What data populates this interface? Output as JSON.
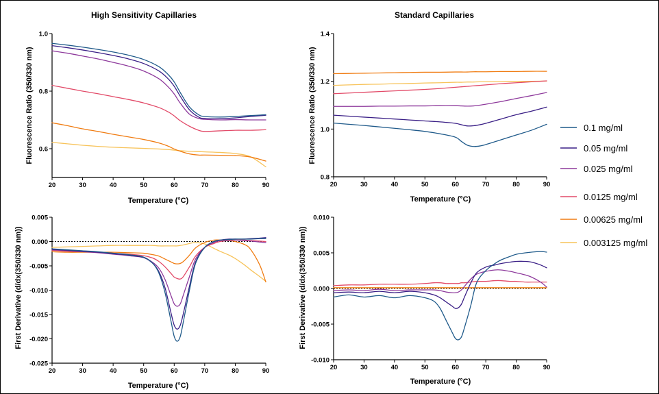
{
  "series": [
    {
      "name": "0.1 mg/ml",
      "color": "#1f5a8a"
    },
    {
      "name": "0.05 mg/ml",
      "color": "#3a1f86"
    },
    {
      "name": "0.025 mg/ml",
      "color": "#8e3a9c"
    },
    {
      "name": "0.0125 mg/ml",
      "color": "#e24a68"
    },
    {
      "name": "0.00625 mg/ml",
      "color": "#f07c12"
    },
    {
      "name": "0.003125 mg/ml",
      "color": "#f7c35a"
    }
  ],
  "legend": {
    "placement": "right"
  },
  "chart_data": [
    {
      "id": "p1",
      "type": "line",
      "title": "High Sensitivity Capillaries",
      "xlabel": "Temperature (°C)",
      "ylabel": "Fluorescence Ratio (350/330 nm)",
      "xlim": [
        20,
        90
      ],
      "ylim": [
        0.5,
        1.0
      ],
      "xticks": [
        20,
        30,
        40,
        50,
        60,
        70,
        80,
        90
      ],
      "xtick_labels": [
        "20",
        "30",
        "40",
        "50",
        "60",
        "70",
        "80",
        "90"
      ],
      "yticks": [
        0.6,
        0.8,
        1.0
      ],
      "ytick_labels": [
        "0.6",
        "0.8",
        "1.0"
      ],
      "grid": false,
      "x": [
        20,
        25,
        30,
        35,
        40,
        45,
        50,
        55,
        58,
        60,
        62,
        65,
        68,
        70,
        75,
        80,
        85,
        90
      ],
      "series": [
        {
          "name": "0.1 mg/ml",
          "values": [
            0.966,
            0.96,
            0.953,
            0.945,
            0.936,
            0.925,
            0.91,
            0.885,
            0.858,
            0.832,
            0.795,
            0.745,
            0.718,
            0.712,
            0.71,
            0.712,
            0.715,
            0.718
          ]
        },
        {
          "name": "0.05 mg/ml",
          "values": [
            0.958,
            0.951,
            0.943,
            0.934,
            0.924,
            0.912,
            0.896,
            0.87,
            0.843,
            0.817,
            0.782,
            0.735,
            0.71,
            0.705,
            0.704,
            0.707,
            0.712,
            0.716
          ]
        },
        {
          "name": "0.025 mg/ml",
          "values": [
            0.94,
            0.932,
            0.922,
            0.912,
            0.9,
            0.887,
            0.87,
            0.843,
            0.815,
            0.79,
            0.758,
            0.72,
            0.705,
            0.702,
            0.7,
            0.701,
            0.7,
            0.7
          ]
        },
        {
          "name": "0.0125 mg/ml",
          "values": [
            0.82,
            0.81,
            0.8,
            0.791,
            0.781,
            0.771,
            0.759,
            0.743,
            0.728,
            0.714,
            0.697,
            0.678,
            0.664,
            0.66,
            0.662,
            0.664,
            0.664,
            0.666
          ]
        },
        {
          "name": "0.00625 mg/ml",
          "values": [
            0.69,
            0.68,
            0.669,
            0.66,
            0.65,
            0.641,
            0.632,
            0.62,
            0.609,
            0.599,
            0.591,
            0.582,
            0.578,
            0.578,
            0.577,
            0.576,
            0.571,
            0.557
          ]
        },
        {
          "name": "0.003125 mg/ml",
          "values": [
            0.622,
            0.617,
            0.612,
            0.608,
            0.605,
            0.603,
            0.601,
            0.599,
            0.597,
            0.595,
            0.593,
            0.591,
            0.59,
            0.589,
            0.587,
            0.583,
            0.572,
            0.537
          ]
        }
      ]
    },
    {
      "id": "p2",
      "type": "line",
      "title": "Standard Capillaries",
      "xlabel": "Temperature (°C)",
      "ylabel": "Fluorescence Ratio (350/330 nm)",
      "xlim": [
        20,
        90
      ],
      "ylim": [
        0.8,
        1.4
      ],
      "xticks": [
        20,
        30,
        40,
        50,
        60,
        70,
        80,
        90
      ],
      "xtick_labels": [
        "20",
        "30",
        "40",
        "50",
        "60",
        "70",
        "80",
        "90"
      ],
      "yticks": [
        0.8,
        1.0,
        1.2,
        1.4
      ],
      "ytick_labels": [
        "0.8",
        "1.0",
        "1.2",
        "1.4"
      ],
      "grid": false,
      "x": [
        20,
        25,
        30,
        35,
        40,
        45,
        50,
        55,
        60,
        62,
        64,
        66,
        68,
        70,
        75,
        80,
        85,
        90
      ],
      "series": [
        {
          "name": "0.1 mg/ml",
          "values": [
            1.025,
            1.02,
            1.015,
            1.009,
            1.003,
            0.997,
            0.99,
            0.98,
            0.966,
            0.948,
            0.932,
            0.927,
            0.929,
            0.935,
            0.955,
            0.975,
            0.995,
            1.02
          ]
        },
        {
          "name": "0.05 mg/ml",
          "values": [
            1.058,
            1.054,
            1.05,
            1.046,
            1.042,
            1.038,
            1.034,
            1.03,
            1.024,
            1.018,
            1.013,
            1.014,
            1.018,
            1.024,
            1.042,
            1.06,
            1.075,
            1.092
          ]
        },
        {
          "name": "0.025 mg/ml",
          "values": [
            1.095,
            1.095,
            1.095,
            1.096,
            1.096,
            1.097,
            1.097,
            1.098,
            1.098,
            1.097,
            1.096,
            1.097,
            1.1,
            1.104,
            1.115,
            1.128,
            1.14,
            1.153
          ]
        },
        {
          "name": "0.0125 mg/ml",
          "values": [
            1.148,
            1.151,
            1.154,
            1.157,
            1.16,
            1.163,
            1.166,
            1.17,
            1.175,
            1.177,
            1.179,
            1.181,
            1.183,
            1.185,
            1.19,
            1.194,
            1.198,
            1.202
          ]
        },
        {
          "name": "0.00625 mg/ml",
          "values": [
            1.232,
            1.233,
            1.234,
            1.235,
            1.236,
            1.237,
            1.238,
            1.238,
            1.239,
            1.239,
            1.239,
            1.24,
            1.24,
            1.24,
            1.241,
            1.241,
            1.242,
            1.242
          ]
        },
        {
          "name": "0.003125 mg/ml",
          "values": [
            1.183,
            1.185,
            1.187,
            1.188,
            1.19,
            1.191,
            1.193,
            1.194,
            1.196,
            1.196,
            1.197,
            1.197,
            1.198,
            1.198,
            1.199,
            1.2,
            1.2,
            1.201
          ]
        }
      ]
    },
    {
      "id": "p3",
      "type": "line",
      "title": "",
      "xlabel": "Temperature (°C)",
      "ylabel": "First Derivative (d/dx(350/330 nm))",
      "xlim": [
        20,
        90
      ],
      "ylim": [
        -0.025,
        0.005
      ],
      "xticks": [
        20,
        30,
        40,
        50,
        60,
        70,
        80,
        90
      ],
      "xtick_labels": [
        "20",
        "30",
        "40",
        "50",
        "60",
        "70",
        "80",
        "90"
      ],
      "yticks": [
        -0.025,
        -0.02,
        -0.015,
        -0.01,
        -0.005,
        0.0,
        0.005
      ],
      "ytick_labels": [
        "-0.025",
        "-0.020",
        "-0.015",
        "-0.010",
        "-0.005",
        "0.000",
        "0.005"
      ],
      "grid": false,
      "zero_line": true,
      "x": [
        20,
        25,
        30,
        35,
        40,
        45,
        50,
        53,
        55,
        57,
        59,
        60,
        61,
        62,
        63,
        65,
        67,
        70,
        73,
        75,
        78,
        80,
        83,
        85,
        88,
        90
      ],
      "series": [
        {
          "name": "0.1 mg/ml",
          "values": [
            -0.0015,
            -0.0017,
            -0.0019,
            -0.0021,
            -0.0024,
            -0.0027,
            -0.0032,
            -0.0045,
            -0.0065,
            -0.0105,
            -0.0165,
            -0.0195,
            -0.0205,
            -0.0195,
            -0.0165,
            -0.01,
            -0.0045,
            -0.0012,
            0.0,
            0.0003,
            0.0004,
            0.0005,
            0.0005,
            0.0005,
            0.0006,
            0.0006
          ]
        },
        {
          "name": "0.05 mg/ml",
          "values": [
            -0.0016,
            -0.0018,
            -0.002,
            -0.0022,
            -0.0025,
            -0.0028,
            -0.0033,
            -0.0045,
            -0.0062,
            -0.0095,
            -0.0148,
            -0.0172,
            -0.018,
            -0.0172,
            -0.0148,
            -0.0092,
            -0.0042,
            -0.0012,
            0.0,
            0.0003,
            0.0005,
            0.0005,
            0.0005,
            0.0006,
            0.0007,
            0.0008
          ]
        },
        {
          "name": "0.025 mg/ml",
          "values": [
            -0.0017,
            -0.0019,
            -0.0021,
            -0.0023,
            -0.0026,
            -0.0029,
            -0.0033,
            -0.0043,
            -0.0055,
            -0.0078,
            -0.0112,
            -0.0128,
            -0.0133,
            -0.0128,
            -0.011,
            -0.0072,
            -0.0036,
            -0.0012,
            -0.0002,
            0.0002,
            0.0003,
            0.0003,
            0.0002,
            0.0001,
            -0.0001,
            -0.0002
          ]
        },
        {
          "name": "0.0125 mg/ml",
          "values": [
            -0.0018,
            -0.002,
            -0.0021,
            -0.0022,
            -0.0024,
            -0.0026,
            -0.0029,
            -0.0034,
            -0.0041,
            -0.0052,
            -0.0066,
            -0.0073,
            -0.0076,
            -0.0077,
            -0.0072,
            -0.0052,
            -0.003,
            -0.0012,
            -0.0004,
            0.0,
            0.0002,
            0.0003,
            0.0003,
            0.0002,
            0.0001,
            0.0
          ]
        },
        {
          "name": "0.00625 mg/ml",
          "values": [
            -0.0021,
            -0.0022,
            -0.0022,
            -0.0022,
            -0.0022,
            -0.0023,
            -0.0024,
            -0.0027,
            -0.003,
            -0.0036,
            -0.0042,
            -0.0045,
            -0.0046,
            -0.0045,
            -0.0041,
            -0.0028,
            -0.0013,
            -0.0002,
            0.0003,
            0.0003,
            0.0002,
            0.0,
            -0.0006,
            -0.0016,
            -0.0048,
            -0.0083
          ]
        },
        {
          "name": "0.003125 mg/ml",
          "values": [
            -0.0012,
            -0.0011,
            -0.001,
            -0.0009,
            -0.0008,
            -0.0008,
            -0.0008,
            -0.0008,
            -0.0009,
            -0.0009,
            -0.0009,
            -0.0009,
            -0.0009,
            -0.0008,
            -0.0007,
            -0.0004,
            -0.0002,
            -0.0005,
            -0.0014,
            -0.002,
            -0.0028,
            -0.0035,
            -0.0048,
            -0.0058,
            -0.0072,
            -0.0082
          ]
        }
      ]
    },
    {
      "id": "p4",
      "type": "line",
      "title": "",
      "xlabel": "Temperature (°C)",
      "ylabel": "First Derivative (d/dx(350/330 nm))",
      "xlim": [
        20,
        90
      ],
      "ylim": [
        -0.01,
        0.01
      ],
      "xticks": [
        20,
        30,
        40,
        50,
        60,
        70,
        80,
        90
      ],
      "xtick_labels": [
        "20",
        "30",
        "40",
        "50",
        "60",
        "70",
        "80",
        "90"
      ],
      "yticks": [
        -0.01,
        -0.005,
        0.0,
        0.005,
        0.01
      ],
      "ytick_labels": [
        "-0.010",
        "-0.005",
        "0.000",
        "0.005",
        "0.010"
      ],
      "grid": false,
      "zero_line": true,
      "x": [
        20,
        25,
        30,
        35,
        40,
        45,
        50,
        53,
        55,
        57,
        59,
        60,
        61,
        62,
        63,
        65,
        67,
        70,
        73,
        75,
        78,
        80,
        83,
        85,
        88,
        90
      ],
      "series": [
        {
          "name": "0.1 mg/ml",
          "values": [
            -0.0012,
            -0.0009,
            -0.0012,
            -0.001,
            -0.0013,
            -0.001,
            -0.0013,
            -0.0018,
            -0.0028,
            -0.0045,
            -0.0062,
            -0.007,
            -0.0072,
            -0.0068,
            -0.0055,
            -0.0025,
            0.0008,
            0.0025,
            0.0035,
            0.004,
            0.0045,
            0.0048,
            0.005,
            0.0051,
            0.0052,
            0.0051
          ]
        },
        {
          "name": "0.05 mg/ml",
          "values": [
            -0.0006,
            -0.0005,
            -0.0006,
            -0.0004,
            -0.0006,
            -0.0004,
            -0.0006,
            -0.0009,
            -0.0013,
            -0.0019,
            -0.0025,
            -0.0028,
            -0.0027,
            -0.0022,
            -0.0012,
            0.0007,
            0.0022,
            0.003,
            0.0033,
            0.0035,
            0.0037,
            0.0038,
            0.0038,
            0.0037,
            0.0033,
            0.0029
          ]
        },
        {
          "name": "0.025 mg/ml",
          "values": [
            -0.0003,
            -0.0002,
            -0.0003,
            -0.0001,
            -0.0003,
            -0.0002,
            -0.0002,
            -0.0002,
            -0.0003,
            -0.0005,
            -0.0006,
            -0.0006,
            -0.0005,
            -0.0002,
            0.0003,
            0.0013,
            0.002,
            0.0024,
            0.0026,
            0.0026,
            0.0024,
            0.0022,
            0.0019,
            0.0016,
            0.0009,
            0.0002
          ]
        },
        {
          "name": "0.0125 mg/ml",
          "values": [
            0.0004,
            0.0005,
            0.0005,
            0.0006,
            0.0006,
            0.0006,
            0.0007,
            0.0008,
            0.0008,
            0.0007,
            0.0007,
            0.0007,
            0.0007,
            0.0008,
            0.0008,
            0.0009,
            0.001,
            0.001,
            0.0011,
            0.0011,
            0.001,
            0.001,
            0.0009,
            0.0009,
            0.0009,
            0.0009
          ]
        },
        {
          "name": "0.00625 mg/ml",
          "values": [
            0.0001,
            0.0001,
            0.0001,
            0.0001,
            0.0001,
            0.0001,
            0.0001,
            0.0001,
            0.0001,
            0.0001,
            0.0001,
            0.0001,
            0.0001,
            0.0001,
            0.0001,
            0.0001,
            0.0001,
            0.0001,
            0.0001,
            0.0001,
            0.0001,
            0.0001,
            0.0001,
            0.0001,
            0.0001,
            0.0001
          ]
        },
        {
          "name": "0.003125 mg/ml",
          "values": [
            0.0001,
            0.0001,
            0.0001,
            0.0001,
            0.0001,
            0.0001,
            0.0001,
            0.0001,
            0.0001,
            0.0001,
            0.0001,
            0.0001,
            0.0001,
            0.0001,
            0.0001,
            0.0001,
            0.0001,
            0.0001,
            0.0001,
            0.0001,
            0.0001,
            0.0001,
            0.0001,
            0.0001,
            0.0001,
            0.0001
          ]
        }
      ]
    }
  ]
}
